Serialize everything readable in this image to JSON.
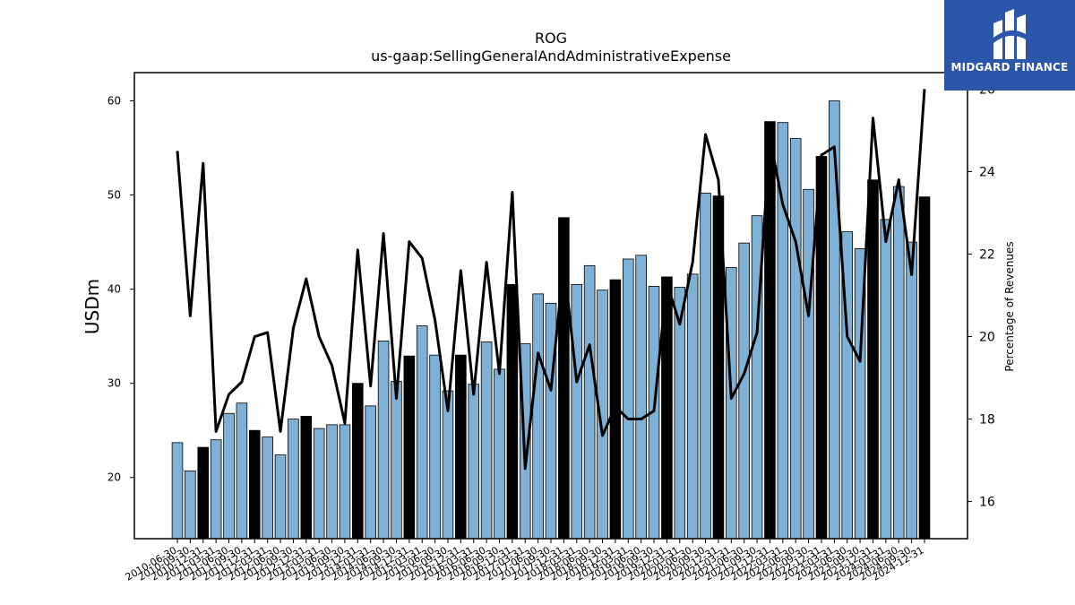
{
  "chart_data": {
    "type": "bar",
    "title": "ROG",
    "subtitle": "us-gaap:SellingGeneralAndAdministrativeExpense",
    "ylabel": "USDm",
    "y2label": "Percentage of Revenues",
    "ylim": [
      13.5,
      63
    ],
    "y2lim": [
      15.1,
      26.4
    ],
    "yticks": [
      20,
      30,
      40,
      50,
      60
    ],
    "y2ticks": [
      16,
      18,
      20,
      22,
      24,
      26
    ],
    "grid": false,
    "categories": [
      "2010-06-30",
      "2010-09-30",
      "2010-12-31",
      "2011-03-31",
      "2011-06-30",
      "2011-09-30",
      "2011-12-31",
      "2012-03-31",
      "2012-06-30",
      "2012-09-30",
      "2012-12-31",
      "2013-03-31",
      "2013-06-30",
      "2013-09-30",
      "2013-12-31",
      "2014-03-31",
      "2014-06-30",
      "2014-09-30",
      "2014-12-31",
      "2015-03-31",
      "2015-06-30",
      "2015-09-30",
      "2015-12-31",
      "2016-03-31",
      "2016-06-30",
      "2016-09-30",
      "2016-12-31",
      "2017-03-31",
      "2017-06-30",
      "2017-09-30",
      "2017-12-31",
      "2018-03-31",
      "2018-06-30",
      "2018-09-30",
      "2018-12-31",
      "2019-03-31",
      "2019-06-30",
      "2019-09-30",
      "2019-12-31",
      "2020-03-31",
      "2020-06-30",
      "2020-09-30",
      "2020-12-31",
      "2021-03-31",
      "2021-06-30",
      "2021-09-30",
      "2021-12-31",
      "2022-03-31",
      "2022-06-30",
      "2022-09-30",
      "2022-12-31",
      "2023-03-31",
      "2023-06-30",
      "2023-09-30",
      "2023-12-31",
      "2024-03-31",
      "2024-06-30",
      "2024-09-30",
      "2024-12-31"
    ],
    "series": [
      {
        "kind": "bar",
        "values": [
          23.7,
          20.7,
          23.2,
          24.0,
          26.8,
          27.9,
          25.0,
          24.3,
          22.4,
          26.2,
          26.5,
          25.2,
          25.6,
          25.6,
          30.0,
          27.6,
          34.5,
          30.2,
          32.9,
          36.1,
          33.0,
          29.2,
          33.0,
          29.9,
          34.4,
          31.5,
          40.5,
          34.2,
          39.5,
          38.5,
          47.6,
          40.5,
          42.5,
          39.9,
          41.0,
          43.2,
          43.6,
          40.3,
          41.3,
          40.2,
          41.6,
          50.2,
          49.9,
          42.3,
          44.9,
          47.8,
          57.8,
          57.7,
          56.0,
          50.6,
          54.1,
          60.0,
          46.1,
          44.3,
          51.6,
          47.4,
          50.9,
          45.0,
          49.8
        ],
        "highlight": [
          false,
          false,
          true,
          false,
          false,
          false,
          true,
          false,
          false,
          false,
          true,
          false,
          false,
          false,
          true,
          false,
          false,
          false,
          true,
          false,
          false,
          false,
          true,
          false,
          false,
          false,
          true,
          false,
          false,
          false,
          true,
          false,
          false,
          false,
          true,
          false,
          false,
          false,
          true,
          false,
          false,
          false,
          true,
          false,
          false,
          false,
          true,
          false,
          false,
          false,
          true,
          false,
          false,
          false,
          true,
          false,
          false,
          false,
          true
        ]
      },
      {
        "kind": "line",
        "axis": "right",
        "values": [
          24.5,
          20.5,
          24.2,
          17.7,
          18.6,
          18.9,
          20.0,
          20.1,
          17.7,
          20.2,
          21.4,
          20.0,
          19.3,
          17.9,
          22.1,
          18.8,
          22.5,
          18.5,
          22.3,
          21.9,
          20.4,
          18.2,
          21.6,
          18.6,
          21.8,
          19.1,
          23.5,
          16.8,
          19.6,
          18.7,
          21.8,
          18.9,
          19.8,
          17.6,
          18.3,
          18.0,
          18.0,
          18.2,
          21.3,
          20.3,
          21.8,
          24.9,
          23.8,
          18.5,
          19.1,
          20.1,
          24.8,
          23.2,
          22.3,
          20.5,
          24.4,
          24.6,
          20.0,
          19.4,
          25.3,
          22.3,
          23.8,
          21.5,
          26.0
        ]
      }
    ],
    "colors": {
      "bar": "#7fb0d5",
      "highlight_bar": "#000000",
      "line": "#000000",
      "bar_edge": "#000000"
    }
  },
  "logo": {
    "text": "MIDGARD FINANCE",
    "icon": "midgard-m-icon",
    "color": "#2b56a9"
  }
}
